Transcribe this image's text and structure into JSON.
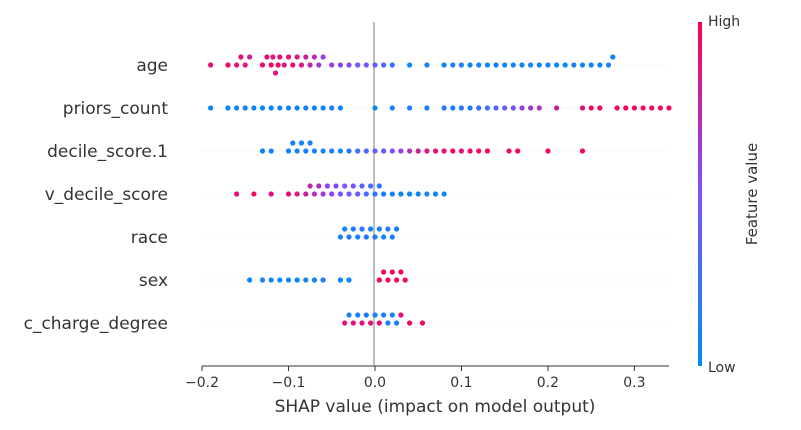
{
  "chart_data": {
    "type": "scatter",
    "subtype": "shap-beeswarm",
    "xlabel": "SHAP value (impact on model output)",
    "xlim": [
      -0.2,
      0.34
    ],
    "xticks": [
      -0.2,
      -0.1,
      0.0,
      0.1,
      0.2,
      0.3
    ],
    "xtick_labels": [
      "−0.2",
      "−0.1",
      "0.0",
      "0.1",
      "0.2",
      "0.3"
    ],
    "grid": false,
    "colorbar": {
      "title": "Feature value",
      "high_label": "High",
      "low_label": "Low",
      "low_color": "#008bfb",
      "mid_color": "#7c52ff",
      "high_color": "#ff0052"
    },
    "features": [
      {
        "name": "age",
        "points": [
          [
            -0.19,
            0.9
          ],
          [
            -0.17,
            0.95
          ],
          [
            -0.16,
            0.9
          ],
          [
            -0.155,
            0.9
          ],
          [
            -0.15,
            0.85
          ],
          [
            -0.145,
            0.8
          ],
          [
            -0.13,
            0.95
          ],
          [
            -0.125,
            0.9
          ],
          [
            -0.12,
            0.95
          ],
          [
            -0.118,
            0.85
          ],
          [
            -0.115,
            0.9
          ],
          [
            -0.112,
            0.95
          ],
          [
            -0.11,
            0.9
          ],
          [
            -0.105,
            0.85
          ],
          [
            -0.1,
            0.9
          ],
          [
            -0.095,
            0.9
          ],
          [
            -0.09,
            0.85
          ],
          [
            -0.085,
            0.85
          ],
          [
            -0.08,
            0.8
          ],
          [
            -0.075,
            0.75
          ],
          [
            -0.07,
            0.7
          ],
          [
            -0.065,
            0.65
          ],
          [
            -0.06,
            0.6
          ],
          [
            -0.05,
            0.6
          ],
          [
            -0.04,
            0.6
          ],
          [
            -0.03,
            0.55
          ],
          [
            -0.02,
            0.5
          ],
          [
            -0.01,
            0.45
          ],
          [
            0.0,
            0.4
          ],
          [
            0.01,
            0.3
          ],
          [
            0.02,
            0.2
          ],
          [
            0.04,
            0.05
          ],
          [
            0.06,
            0.1
          ],
          [
            0.08,
            0.05
          ],
          [
            0.09,
            0.1
          ],
          [
            0.1,
            0.1
          ],
          [
            0.11,
            0.05
          ],
          [
            0.12,
            0.1
          ],
          [
            0.13,
            0.05
          ],
          [
            0.14,
            0.1
          ],
          [
            0.15,
            0.05
          ],
          [
            0.16,
            0.1
          ],
          [
            0.17,
            0.05
          ],
          [
            0.18,
            0.1
          ],
          [
            0.19,
            0.05
          ],
          [
            0.2,
            0.1
          ],
          [
            0.21,
            0.05
          ],
          [
            0.22,
            0.05
          ],
          [
            0.23,
            0.1
          ],
          [
            0.24,
            0.05
          ],
          [
            0.25,
            0.05
          ],
          [
            0.26,
            0.05
          ],
          [
            0.27,
            0.1
          ],
          [
            0.275,
            0.05
          ]
        ]
      },
      {
        "name": "priors_count",
        "points": [
          [
            -0.19,
            0.05
          ],
          [
            -0.17,
            0.05
          ],
          [
            -0.16,
            0.05
          ],
          [
            -0.15,
            0.1
          ],
          [
            -0.14,
            0.05
          ],
          [
            -0.13,
            0.05
          ],
          [
            -0.12,
            0.05
          ],
          [
            -0.11,
            0.1
          ],
          [
            -0.1,
            0.05
          ],
          [
            -0.09,
            0.05
          ],
          [
            -0.08,
            0.1
          ],
          [
            -0.07,
            0.05
          ],
          [
            -0.06,
            0.05
          ],
          [
            -0.05,
            0.1
          ],
          [
            -0.04,
            0.05
          ],
          [
            0.0,
            0.05
          ],
          [
            0.02,
            0.1
          ],
          [
            0.04,
            0.1
          ],
          [
            0.06,
            0.1
          ],
          [
            0.08,
            0.15
          ],
          [
            0.09,
            0.1
          ],
          [
            0.1,
            0.15
          ],
          [
            0.11,
            0.15
          ],
          [
            0.12,
            0.2
          ],
          [
            0.13,
            0.25
          ],
          [
            0.14,
            0.35
          ],
          [
            0.15,
            0.4
          ],
          [
            0.16,
            0.5
          ],
          [
            0.17,
            0.6
          ],
          [
            0.18,
            0.65
          ],
          [
            0.19,
            0.7
          ],
          [
            0.21,
            0.8
          ],
          [
            0.24,
            0.9
          ],
          [
            0.25,
            0.95
          ],
          [
            0.26,
            0.95
          ],
          [
            0.28,
            0.95
          ],
          [
            0.29,
            0.95
          ],
          [
            0.3,
            0.95
          ],
          [
            0.31,
            0.95
          ],
          [
            0.32,
            0.95
          ],
          [
            0.33,
            0.95
          ],
          [
            0.34,
            0.95
          ]
        ]
      },
      {
        "name": "decile_score.1",
        "points": [
          [
            -0.13,
            0.05
          ],
          [
            -0.12,
            0.1
          ],
          [
            -0.1,
            0.05
          ],
          [
            -0.095,
            0.1
          ],
          [
            -0.09,
            0.1
          ],
          [
            -0.085,
            0.05
          ],
          [
            -0.08,
            0.1
          ],
          [
            -0.075,
            0.1
          ],
          [
            -0.07,
            0.1
          ],
          [
            -0.06,
            0.1
          ],
          [
            -0.05,
            0.1
          ],
          [
            -0.04,
            0.1
          ],
          [
            -0.03,
            0.15
          ],
          [
            -0.02,
            0.25
          ],
          [
            -0.01,
            0.35
          ],
          [
            0.0,
            0.4
          ],
          [
            0.01,
            0.45
          ],
          [
            0.02,
            0.5
          ],
          [
            0.03,
            0.6
          ],
          [
            0.04,
            0.7
          ],
          [
            0.05,
            0.8
          ],
          [
            0.06,
            0.85
          ],
          [
            0.07,
            0.9
          ],
          [
            0.08,
            0.9
          ],
          [
            0.09,
            0.95
          ],
          [
            0.1,
            0.9
          ],
          [
            0.11,
            0.95
          ],
          [
            0.12,
            0.95
          ],
          [
            0.13,
            0.95
          ],
          [
            0.155,
            0.95
          ],
          [
            0.165,
            0.95
          ],
          [
            0.2,
            0.95
          ],
          [
            0.24,
            0.95
          ]
        ]
      },
      {
        "name": "v_decile_score",
        "points": [
          [
            -0.16,
            0.9
          ],
          [
            -0.14,
            0.95
          ],
          [
            -0.12,
            0.9
          ],
          [
            -0.1,
            0.9
          ],
          [
            -0.09,
            0.85
          ],
          [
            -0.08,
            0.8
          ],
          [
            -0.075,
            0.75
          ],
          [
            -0.07,
            0.7
          ],
          [
            -0.065,
            0.7
          ],
          [
            -0.06,
            0.65
          ],
          [
            -0.055,
            0.6
          ],
          [
            -0.05,
            0.6
          ],
          [
            -0.045,
            0.55
          ],
          [
            -0.04,
            0.5
          ],
          [
            -0.035,
            0.5
          ],
          [
            -0.03,
            0.45
          ],
          [
            -0.025,
            0.45
          ],
          [
            -0.02,
            0.4
          ],
          [
            -0.015,
            0.35
          ],
          [
            -0.01,
            0.3
          ],
          [
            -0.005,
            0.25
          ],
          [
            0.0,
            0.2
          ],
          [
            0.005,
            0.15
          ],
          [
            0.01,
            0.1
          ],
          [
            0.02,
            0.1
          ],
          [
            0.03,
            0.05
          ],
          [
            0.04,
            0.05
          ],
          [
            0.05,
            0.05
          ],
          [
            0.06,
            0.1
          ],
          [
            0.07,
            0.05
          ],
          [
            0.08,
            0.05
          ]
        ]
      },
      {
        "name": "race",
        "points": [
          [
            -0.04,
            0.1
          ],
          [
            -0.035,
            0.1
          ],
          [
            -0.03,
            0.15
          ],
          [
            -0.025,
            0.15
          ],
          [
            -0.02,
            0.1
          ],
          [
            -0.015,
            0.2
          ],
          [
            -0.01,
            0.15
          ],
          [
            -0.005,
            0.1
          ],
          [
            0.0,
            0.15
          ],
          [
            0.005,
            0.1
          ],
          [
            0.01,
            0.1
          ],
          [
            0.015,
            0.15
          ],
          [
            0.02,
            0.1
          ],
          [
            0.025,
            0.1
          ]
        ]
      },
      {
        "name": "sex",
        "points": [
          [
            -0.145,
            0.05
          ],
          [
            -0.13,
            0.1
          ],
          [
            -0.12,
            0.05
          ],
          [
            -0.11,
            0.05
          ],
          [
            -0.1,
            0.1
          ],
          [
            -0.09,
            0.05
          ],
          [
            -0.08,
            0.05
          ],
          [
            -0.07,
            0.05
          ],
          [
            -0.06,
            0.1
          ],
          [
            -0.04,
            0.05
          ],
          [
            -0.03,
            0.05
          ],
          [
            0.005,
            0.95
          ],
          [
            0.01,
            0.95
          ],
          [
            0.015,
            0.95
          ],
          [
            0.02,
            0.95
          ],
          [
            0.025,
            0.95
          ],
          [
            0.03,
            0.95
          ],
          [
            0.035,
            0.95
          ]
        ]
      },
      {
        "name": "c_charge_degree",
        "points": [
          [
            -0.035,
            0.9
          ],
          [
            -0.03,
            0.1
          ],
          [
            -0.025,
            0.9
          ],
          [
            -0.02,
            0.1
          ],
          [
            -0.015,
            0.9
          ],
          [
            -0.01,
            0.1
          ],
          [
            -0.005,
            0.9
          ],
          [
            0.0,
            0.1
          ],
          [
            0.005,
            0.9
          ],
          [
            0.01,
            0.1
          ],
          [
            0.015,
            0.1
          ],
          [
            0.02,
            0.1
          ],
          [
            0.025,
            0.1
          ],
          [
            0.03,
            0.9
          ],
          [
            0.04,
            0.95
          ],
          [
            0.055,
            0.95
          ]
        ]
      }
    ]
  }
}
